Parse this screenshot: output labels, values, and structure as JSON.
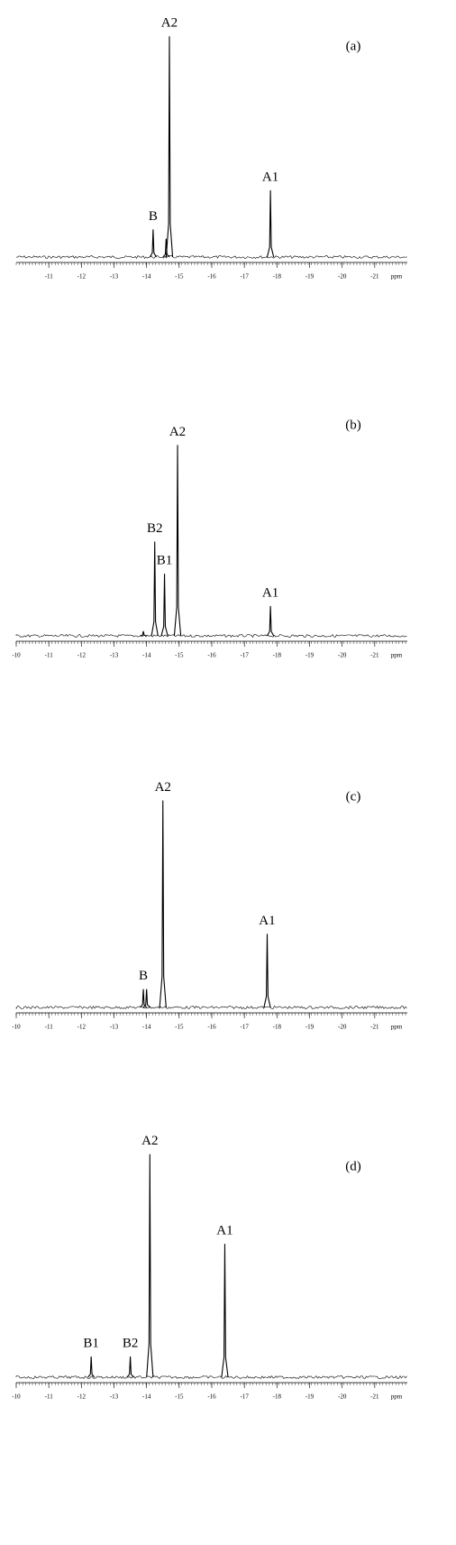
{
  "chart_data": [
    {
      "type": "spectrum",
      "panel_label": "(a)",
      "xlabel": "ppm",
      "x": [
        -14.2,
        -14.6,
        -14.7,
        -17.8
      ],
      "values": [
        12,
        8,
        96,
        29
      ],
      "peak_labels": [
        "B",
        null,
        "A2",
        "A1"
      ],
      "color": "#000000",
      "xlim": [
        -10,
        -22
      ],
      "xticks": [
        -11,
        -12,
        -13,
        -14,
        -15,
        -16,
        -17,
        -18,
        -19,
        -20,
        -21
      ],
      "ylim": [
        0,
        100
      ]
    },
    {
      "type": "spectrum",
      "panel_label": "(b)",
      "xlabel": "ppm",
      "x": [
        -13.9,
        -14.25,
        -14.55,
        -14.95,
        -17.8
      ],
      "values": [
        2,
        41,
        27,
        83,
        13
      ],
      "peak_labels": [
        null,
        "B2",
        "B1",
        "A2",
        "A1"
      ],
      "color": "#000000",
      "xlim": [
        -10,
        -22
      ],
      "xticks": [
        -10,
        -11,
        -12,
        -13,
        -14,
        -15,
        -16,
        -17,
        -18,
        -19,
        -20,
        -21
      ],
      "ylim": [
        0,
        100
      ]
    },
    {
      "type": "spectrum",
      "panel_label": "(c)",
      "xlabel": "ppm",
      "x": [
        -13.9,
        -14.0,
        -14.5,
        -17.7
      ],
      "values": [
        8,
        8,
        90,
        32
      ],
      "peak_labels": [
        "B",
        null,
        "A2",
        "A1"
      ],
      "color": "#000000",
      "xlim": [
        -10,
        -22
      ],
      "xticks": [
        -10,
        -11,
        -12,
        -13,
        -14,
        -15,
        -16,
        -17,
        -18,
        -19,
        -20,
        -21
      ],
      "ylim": [
        0,
        100
      ]
    },
    {
      "type": "spectrum",
      "panel_label": "(d)",
      "xlabel": "ppm",
      "x": [
        -12.3,
        -13.5,
        -14.1,
        -16.4
      ],
      "values": [
        9,
        9,
        97,
        58
      ],
      "peak_labels": [
        "B1",
        "B2",
        "A2",
        "A1"
      ],
      "color": "#000000",
      "xlim": [
        -10,
        -22
      ],
      "xticks": [
        -10,
        -11,
        -12,
        -13,
        -14,
        -15,
        -16,
        -17,
        -18,
        -19,
        -20,
        -21
      ],
      "ylim": [
        0,
        100
      ]
    }
  ]
}
